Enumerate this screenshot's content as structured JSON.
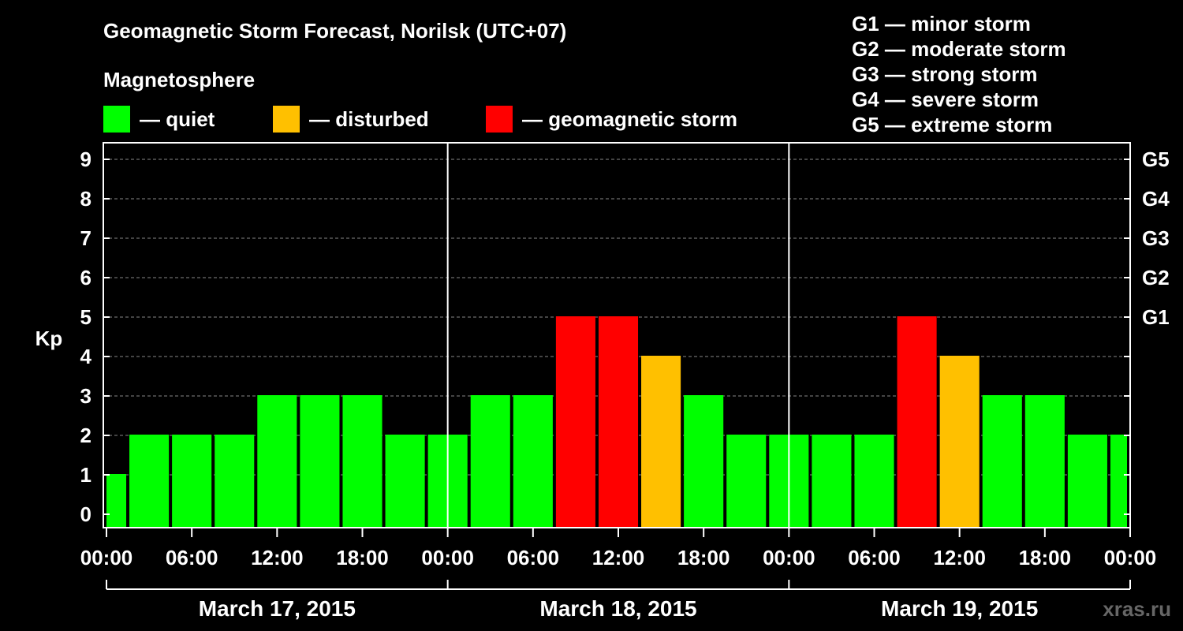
{
  "header": {
    "title": "Geomagnetic Storm Forecast, Norilsk (UTC+07)",
    "subtitle": "Magnetosphere"
  },
  "legend": [
    {
      "label": "— quiet",
      "color": "#00ff00"
    },
    {
      "label": "— disturbed",
      "color": "#ffc000"
    },
    {
      "label": "— geomagnetic storm",
      "color": "#ff0000"
    }
  ],
  "storm_levels": [
    "G1 — minor storm",
    "G2 — moderate storm",
    "G3 — strong storm",
    "G4 — severe storm",
    "G5 — extreme storm"
  ],
  "watermark": "xras.ru",
  "chart_data": {
    "type": "bar",
    "ylabel": "Kp",
    "ylim": [
      0,
      9
    ],
    "yticks": [
      "0",
      "1",
      "2",
      "3",
      "4",
      "5",
      "6",
      "7",
      "8",
      "9"
    ],
    "right_axis": [
      {
        "kp": 5,
        "label": "G1"
      },
      {
        "kp": 6,
        "label": "G2"
      },
      {
        "kp": 7,
        "label": "G3"
      },
      {
        "kp": 8,
        "label": "G4"
      },
      {
        "kp": 9,
        "label": "G5"
      }
    ],
    "xticks": [
      "00:00",
      "06:00",
      "12:00",
      "18:00",
      "00:00",
      "06:00",
      "12:00",
      "18:00",
      "00:00",
      "06:00",
      "12:00",
      "18:00",
      "00:00"
    ],
    "days": [
      "March 17, 2015",
      "March 18, 2015",
      "March 19, 2015"
    ],
    "interval_hours": 3,
    "values": [
      1,
      2,
      2,
      2,
      3,
      3,
      3,
      2,
      2,
      3,
      3,
      5,
      5,
      4,
      3,
      2,
      2,
      2,
      2,
      5,
      4,
      3,
      3,
      2,
      2
    ],
    "colors": {
      "quiet": "#00ff00",
      "disturbed": "#ffc000",
      "storm": "#ff0000"
    },
    "grid": true
  }
}
